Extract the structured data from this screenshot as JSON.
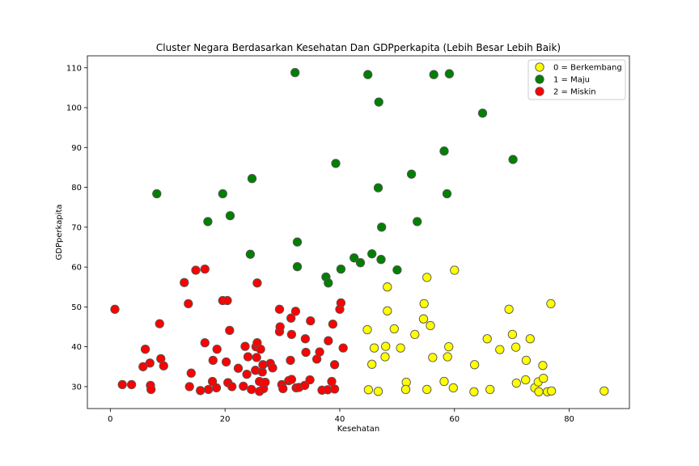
{
  "chart_data": {
    "type": "scatter",
    "title": "Cluster Negara Berdasarkan Kesehatan Dan GDPperkapita (Lebih Besar Lebih Baik)",
    "xlabel": "Kesehatan",
    "ylabel": "GDPperkapita",
    "xlim": [
      -4,
      90.5
    ],
    "ylim": [
      24.5,
      113
    ],
    "xticks": [
      0,
      20,
      40,
      60,
      80
    ],
    "yticks": [
      30,
      40,
      50,
      60,
      70,
      80,
      90,
      100,
      110
    ],
    "grid": false,
    "legend_position": "top-right",
    "series": [
      {
        "name": "0 = Berkembang",
        "color": "#ffff00",
        "points": [
          [
            44.8,
            44.3
          ],
          [
            45.6,
            35.6
          ],
          [
            46,
            39.7
          ],
          [
            47.9,
            37.5
          ],
          [
            48,
            40.1
          ],
          [
            48.3,
            55
          ],
          [
            48.3,
            49
          ],
          [
            49.5,
            44.5
          ],
          [
            50.6,
            39.7
          ],
          [
            51.6,
            31.1
          ],
          [
            53.1,
            43.1
          ],
          [
            54.6,
            47
          ],
          [
            54.7,
            50.8
          ],
          [
            55.2,
            57.4
          ],
          [
            55.8,
            45.3
          ],
          [
            56.2,
            37.3
          ],
          [
            58.2,
            31.3
          ],
          [
            58.8,
            37.5
          ],
          [
            59,
            40
          ],
          [
            59.8,
            29.7
          ],
          [
            60,
            59.2
          ],
          [
            63.5,
            35.5
          ],
          [
            63.4,
            28.7
          ],
          [
            65.7,
            42
          ],
          [
            66.2,
            29.3
          ],
          [
            67.9,
            39.3
          ],
          [
            69.5,
            49.4
          ],
          [
            70.1,
            43.1
          ],
          [
            70.7,
            39.9
          ],
          [
            70.8,
            30.9
          ],
          [
            72.4,
            31.7
          ],
          [
            72.5,
            36.6
          ],
          [
            73.2,
            42
          ],
          [
            74,
            29.7
          ],
          [
            74.6,
            31.2
          ],
          [
            74.7,
            28.7
          ],
          [
            75.4,
            35.3
          ],
          [
            75.5,
            32.1
          ],
          [
            76.2,
            28.7
          ],
          [
            76.8,
            50.8
          ],
          [
            76.9,
            28.9
          ],
          [
            86.1,
            28.9
          ],
          [
            45,
            29.2
          ],
          [
            46.7,
            28.8
          ],
          [
            51.5,
            29.3
          ],
          [
            55.2,
            29.3
          ]
        ]
      },
      {
        "name": "1 = Maju",
        "color": "#008000",
        "points": [
          [
            32.2,
            108.8
          ],
          [
            44.9,
            108.3
          ],
          [
            56.4,
            108.3
          ],
          [
            59.1,
            108.5
          ],
          [
            46.8,
            101.4
          ],
          [
            64.9,
            98.6
          ],
          [
            58.2,
            89.1
          ],
          [
            70.2,
            87
          ],
          [
            39.3,
            86
          ],
          [
            52.5,
            83.3
          ],
          [
            8.1,
            78.4
          ],
          [
            19.6,
            78.4
          ],
          [
            24.7,
            82.2
          ],
          [
            46.7,
            79.9
          ],
          [
            58.7,
            78.4
          ],
          [
            17,
            71.4
          ],
          [
            20.9,
            72.9
          ],
          [
            47.3,
            70
          ],
          [
            53.5,
            71.4
          ],
          [
            24.4,
            63.2
          ],
          [
            32.6,
            66.3
          ],
          [
            42.5,
            62.3
          ],
          [
            43.6,
            61.1
          ],
          [
            45.6,
            63.3
          ],
          [
            47.2,
            61.9
          ],
          [
            50,
            59.3
          ],
          [
            32.6,
            60.1
          ],
          [
            37.6,
            57.5
          ],
          [
            38,
            56
          ],
          [
            40.2,
            59.5
          ]
        ]
      },
      {
        "name": "2 = Miskin",
        "color": "#ff0000",
        "points": [
          [
            0.8,
            49.4
          ],
          [
            2.1,
            30.5
          ],
          [
            3.7,
            30.5
          ],
          [
            6.1,
            39.4
          ],
          [
            5.7,
            35
          ],
          [
            7,
            30.3
          ],
          [
            7.1,
            29.3
          ],
          [
            6.9,
            35.9
          ],
          [
            8.6,
            45.8
          ],
          [
            8.8,
            37
          ],
          [
            9.3,
            35.2
          ],
          [
            12.9,
            56.1
          ],
          [
            13.6,
            50.8
          ],
          [
            14.1,
            33.4
          ],
          [
            13.8,
            30
          ],
          [
            14.9,
            59.2
          ],
          [
            15.7,
            29
          ],
          [
            16.5,
            59.5
          ],
          [
            16.5,
            41
          ],
          [
            17.1,
            29.3
          ],
          [
            17.8,
            31.3
          ],
          [
            17.9,
            36.6
          ],
          [
            18.5,
            29.7
          ],
          [
            18.6,
            39.4
          ],
          [
            19.6,
            51.6
          ],
          [
            20.4,
            51.6
          ],
          [
            20.2,
            36.2
          ],
          [
            20.5,
            31
          ],
          [
            20.8,
            44.1
          ],
          [
            21.2,
            30
          ],
          [
            22.3,
            34.6
          ],
          [
            23.2,
            30.1
          ],
          [
            23.5,
            40.1
          ],
          [
            23.8,
            33.1
          ],
          [
            24,
            37.5
          ],
          [
            24.6,
            29.3
          ],
          [
            25.3,
            34.1
          ],
          [
            25.4,
            40
          ],
          [
            25.5,
            37.3
          ],
          [
            25.6,
            41
          ],
          [
            25.6,
            56
          ],
          [
            26,
            31.3
          ],
          [
            26,
            28.8
          ],
          [
            26.2,
            39.4
          ],
          [
            26.5,
            33.7
          ],
          [
            26.7,
            29.5
          ],
          [
            26.6,
            35.5
          ],
          [
            27,
            31.1
          ],
          [
            27.9,
            35.8
          ],
          [
            28.3,
            34.7
          ],
          [
            29.5,
            49.4
          ],
          [
            29.5,
            43.8
          ],
          [
            29.6,
            45
          ],
          [
            29.9,
            30.5
          ],
          [
            30.1,
            29.5
          ],
          [
            31.1,
            31.5
          ],
          [
            31.4,
            36.6
          ],
          [
            31.5,
            47.2
          ],
          [
            31.6,
            31.8
          ],
          [
            31.6,
            43.1
          ],
          [
            32.3,
            48.9
          ],
          [
            32.4,
            29.7
          ],
          [
            32.9,
            29.8
          ],
          [
            33.9,
            30.3
          ],
          [
            34,
            42
          ],
          [
            34.1,
            38.6
          ],
          [
            34.8,
            31.7
          ],
          [
            34.9,
            46.5
          ],
          [
            36,
            36.9
          ],
          [
            36.5,
            38.7
          ],
          [
            36.9,
            29.1
          ],
          [
            37.9,
            29.2
          ],
          [
            38,
            41.5
          ],
          [
            38.6,
            31.3
          ],
          [
            38.8,
            45.7
          ],
          [
            39.1,
            35.5
          ],
          [
            39.1,
            29.4
          ],
          [
            40,
            49.4
          ],
          [
            40.2,
            51
          ],
          [
            40.6,
            39.7
          ]
        ]
      }
    ]
  }
}
